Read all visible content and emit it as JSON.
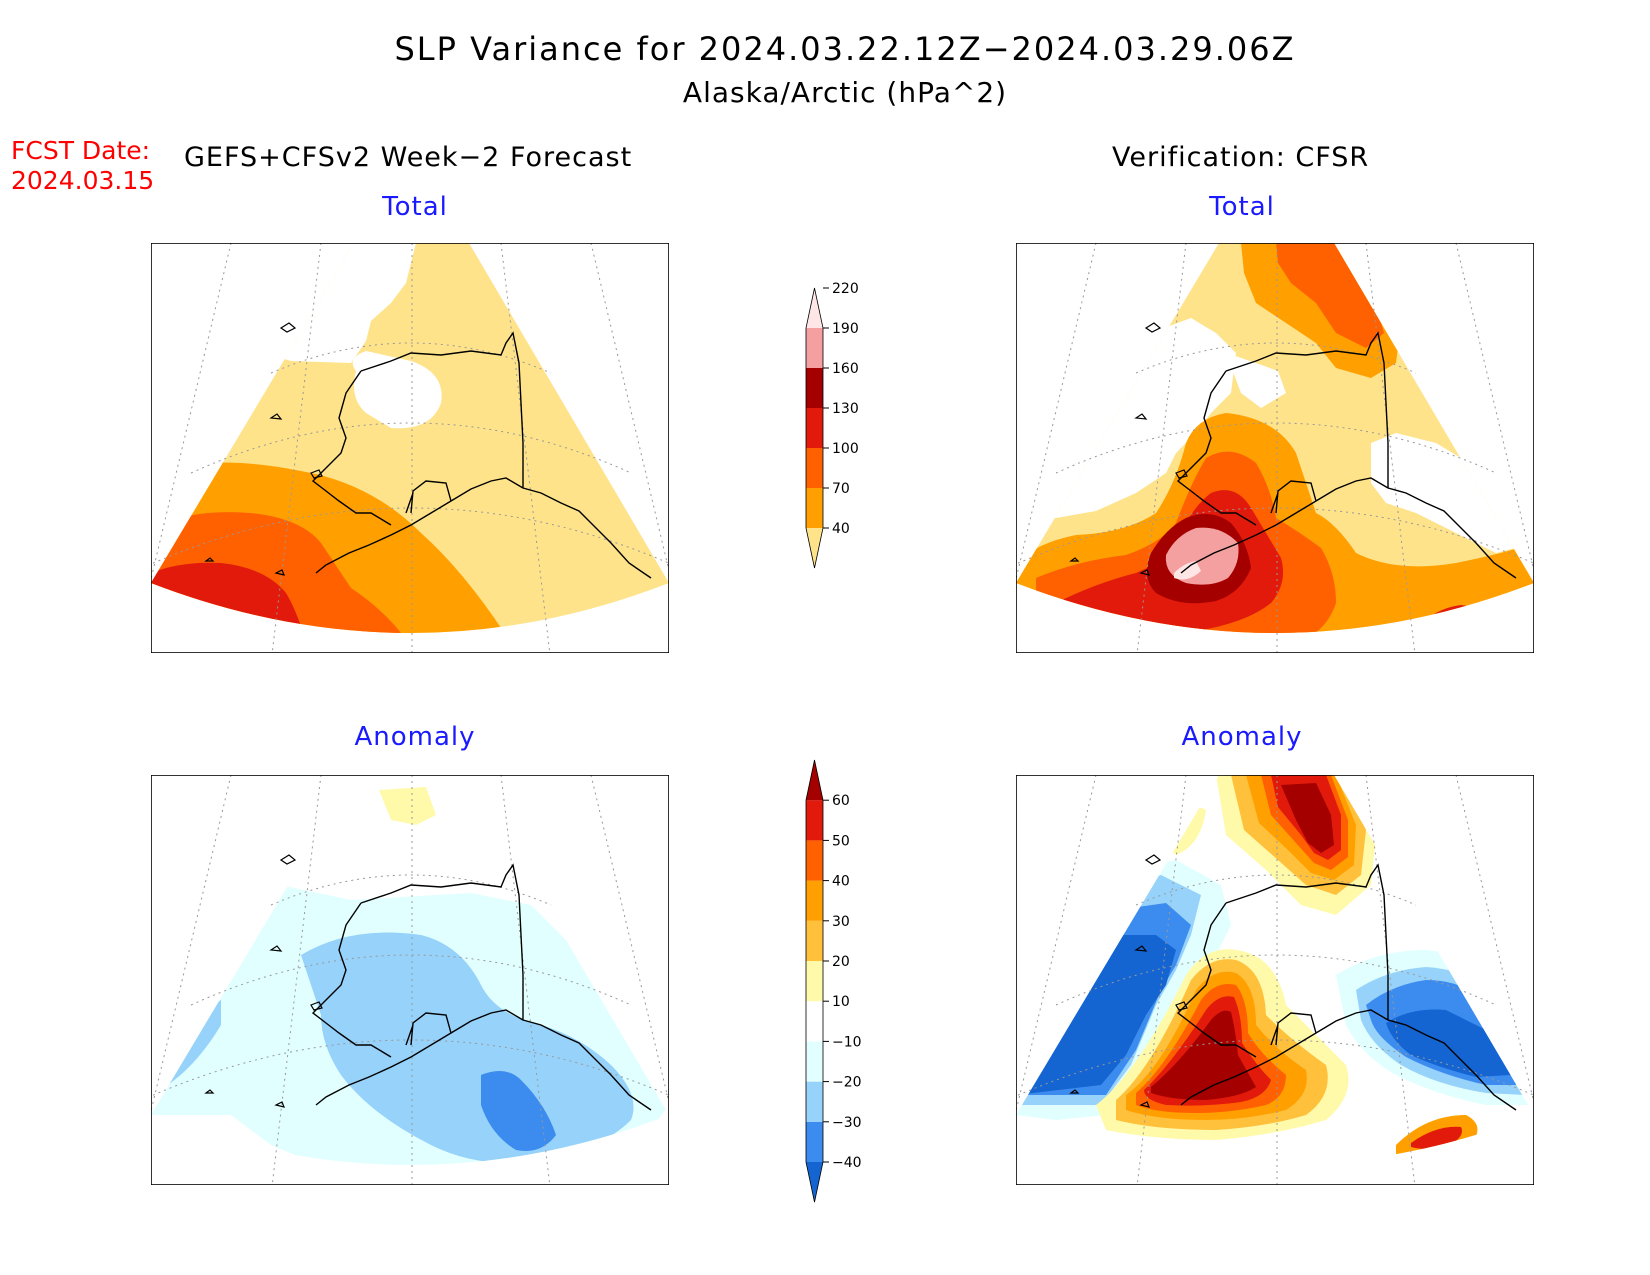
{
  "title": {
    "line1": "SLP Variance for 2024.03.22.12Z−2024.03.29.06Z",
    "line2": "Alaska/Arctic (hPa^2)"
  },
  "forecast_date": {
    "label": "FCST Date:",
    "value": "2024.03.15"
  },
  "left_column": {
    "header": "GEFS+CFSv2 Week−2 Forecast",
    "top_panel_title": "Total",
    "bottom_panel_title": "Anomaly"
  },
  "right_column": {
    "header": "Verification: CFSR",
    "top_panel_title": "Total",
    "bottom_panel_title": "Anomaly"
  },
  "colorbars": {
    "total": {
      "ticks": [
        "40",
        "70",
        "100",
        "130",
        "160",
        "190",
        "220"
      ],
      "colors": [
        "#fee38a",
        "#ffa000",
        "#ff6000",
        "#e11a0c",
        "#a50000",
        "#f4a0a0",
        "#ffe6e6"
      ]
    },
    "anomaly": {
      "ticks": [
        "−40",
        "−30",
        "−20",
        "−10",
        "10",
        "20",
        "30",
        "40",
        "50",
        "60"
      ],
      "colors": [
        "#1464d2",
        "#3c8cf0",
        "#96d2fa",
        "#e1ffff",
        "#ffffff",
        "#fffaaa",
        "#ffc03c",
        "#ffa000",
        "#ff6000",
        "#e11a0c",
        "#a50000"
      ]
    }
  },
  "fill_colors": {
    "none": "#ffffff",
    "t40": "#fee38a",
    "t70": "#ffa000",
    "t100": "#ff6000",
    "t130": "#e11a0c",
    "t160": "#a50000",
    "t190": "#f4a0a0",
    "t220": "#ffe6e6",
    "a_m40": "#1464d2",
    "a_m30": "#3c8cf0",
    "a_m20": "#96d2fa",
    "a_m10": "#e1ffff",
    "a_p10": "#fffaaa",
    "a_p20": "#ffc03c",
    "a_p30": "#ffa000",
    "a_p40": "#ff6000",
    "a_p50": "#e11a0c",
    "a_p60": "#a50000"
  }
}
